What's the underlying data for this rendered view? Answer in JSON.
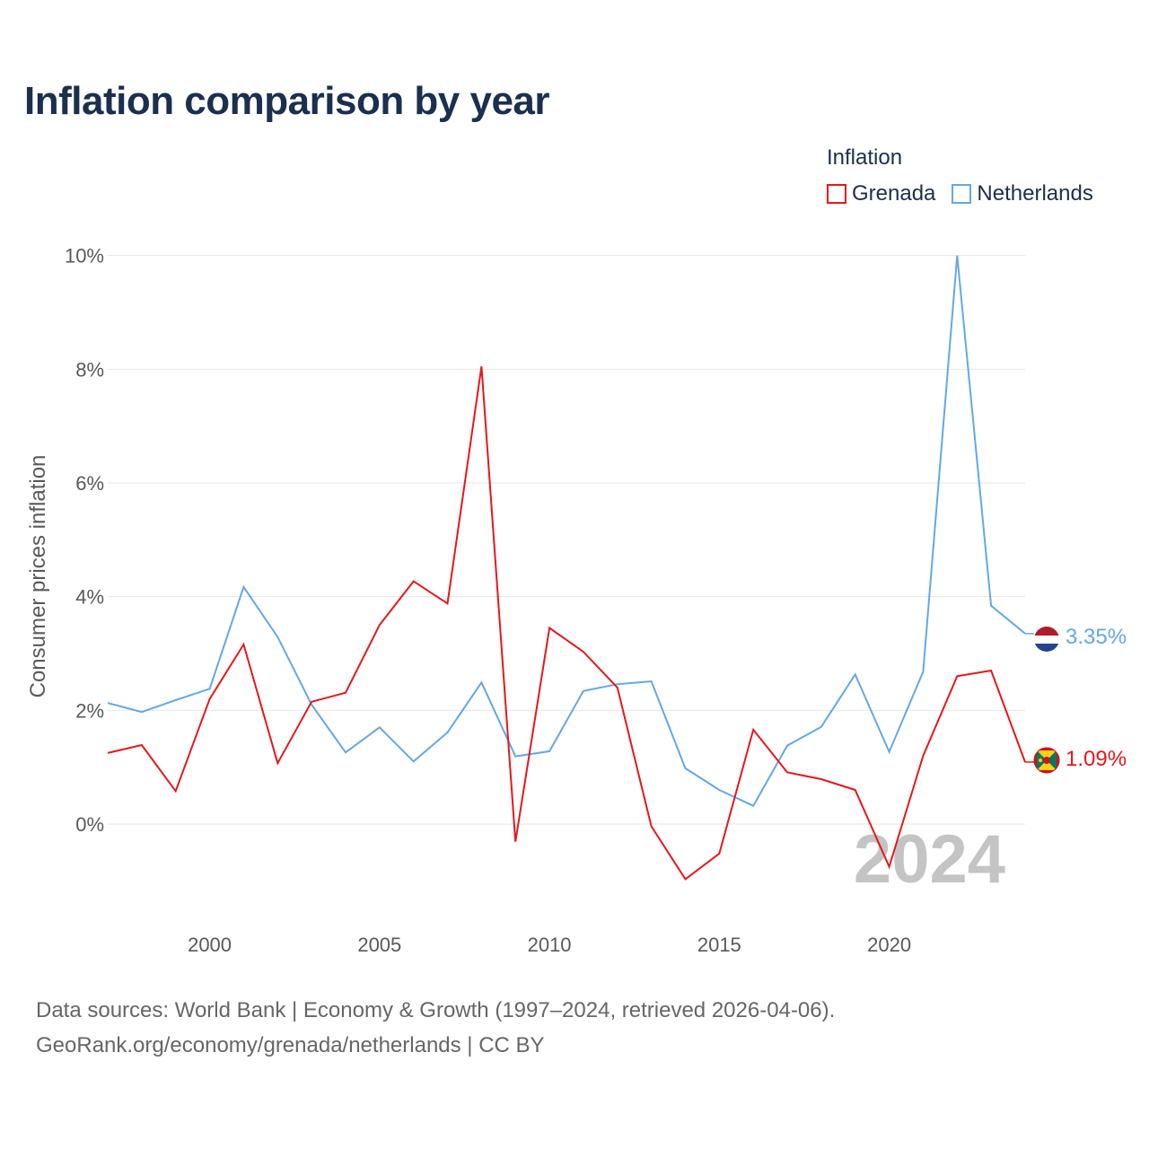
{
  "title": "Inflation comparison by year",
  "legend": {
    "title": "Inflation",
    "items": [
      {
        "name": "Grenada",
        "color": "#e8161b"
      },
      {
        "name": "Netherlands",
        "color": "#63a8e5"
      }
    ]
  },
  "source": {
    "line1": "Data sources: World Bank | Economy & Growth (1997–2024, retrieved 2026-04-06).",
    "line2": "GeoRank.org/economy/grenada/netherlands | CC BY"
  },
  "chart_data": {
    "type": "line",
    "title": "Inflation comparison by year",
    "xlabel": "",
    "ylabel": "Consumer prices inflation",
    "xlim": [
      1997,
      2024
    ],
    "ylim": [
      -1.5,
      10.5
    ],
    "x_ticks": [
      2000,
      2005,
      2010,
      2015,
      2020
    ],
    "y_ticks": [
      0,
      2,
      4,
      6,
      8,
      10
    ],
    "y_tick_labels": [
      "0%",
      "2%",
      "4%",
      "6%",
      "8%",
      "10%"
    ],
    "grid": true,
    "legend_position": "top-right",
    "watermark_year": "2024",
    "x": [
      1997,
      1998,
      1999,
      2000,
      2001,
      2002,
      2003,
      2004,
      2005,
      2006,
      2007,
      2008,
      2009,
      2010,
      2011,
      2012,
      2013,
      2014,
      2015,
      2016,
      2017,
      2018,
      2019,
      2020,
      2021,
      2022,
      2023,
      2024
    ],
    "series": [
      {
        "name": "Grenada",
        "color": "#e8161b",
        "end_label": "1.09%",
        "flag": "grenada-flag",
        "values": [
          1.25,
          1.39,
          0.58,
          2.2,
          3.16,
          1.07,
          2.15,
          2.31,
          3.5,
          4.27,
          3.88,
          8.05,
          -0.31,
          3.45,
          3.03,
          2.4,
          -0.04,
          -0.97,
          -0.52,
          1.66,
          0.91,
          0.79,
          0.6,
          -0.75,
          1.2,
          2.6,
          2.7,
          1.09
        ]
      },
      {
        "name": "Netherlands",
        "color": "#63a8e5",
        "end_label": "3.35%",
        "flag": "netherlands-flag",
        "values": [
          2.13,
          1.97,
          2.18,
          2.38,
          4.17,
          3.29,
          2.1,
          1.26,
          1.7,
          1.1,
          1.61,
          2.49,
          1.19,
          1.28,
          2.34,
          2.46,
          2.51,
          0.98,
          0.6,
          0.32,
          1.38,
          1.71,
          2.63,
          1.27,
          2.68,
          10.0,
          3.84,
          3.35
        ]
      }
    ]
  }
}
